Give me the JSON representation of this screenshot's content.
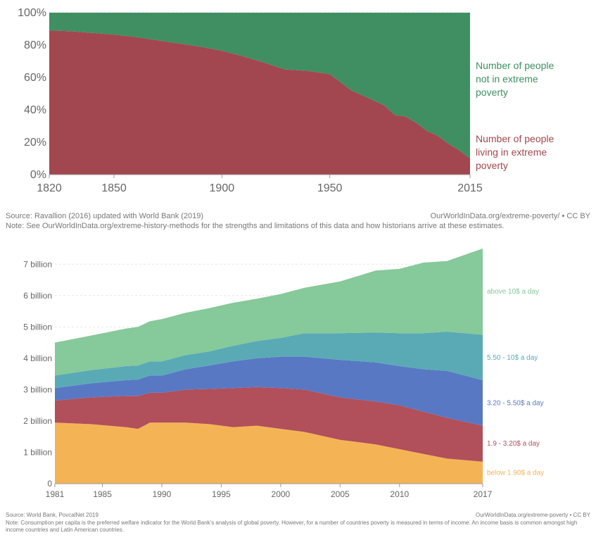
{
  "chart_data": [
    {
      "type": "area",
      "stacked": true,
      "normalized": true,
      "x": [
        1820,
        1830,
        1840,
        1850,
        1860,
        1870,
        1880,
        1890,
        1900,
        1910,
        1920,
        1929,
        1935,
        1940,
        1950,
        1955,
        1960,
        1965,
        1970,
        1975,
        1980,
        1981,
        1985,
        1990,
        1995,
        2000,
        2005,
        2010,
        2015
      ],
      "series": [
        {
          "name": "Number of people living in extreme poverty",
          "color": "#a2474f",
          "values": [
            89,
            88.5,
            87.5,
            86.5,
            85,
            83,
            81,
            79,
            76.5,
            73,
            69,
            65,
            64.5,
            64,
            62,
            57,
            52,
            49,
            46,
            43,
            37,
            36.5,
            36,
            32,
            27,
            24,
            19,
            15,
            10
          ]
        },
        {
          "name": "Number of people not in extreme poverty",
          "color": "#3f8f62",
          "values": [
            11,
            11.5,
            12.5,
            13.5,
            15,
            17,
            19,
            21,
            23.5,
            27,
            31,
            35,
            35.5,
            36,
            38,
            43,
            48,
            51,
            54,
            57,
            63,
            63.5,
            64,
            68,
            73,
            76,
            81,
            85,
            90
          ]
        }
      ],
      "xticks": [
        "1820",
        "1850",
        "1900",
        "1950",
        "2015"
      ],
      "yticks": [
        "0%",
        "20%",
        "40%",
        "60%",
        "80%",
        "100%"
      ],
      "ylim": [
        0,
        100
      ],
      "source": "Source: Ravallion (2016) updated with World Bank (2019)",
      "credit": "OurWorldInData.org/extreme-poverty/ • CC BY",
      "note": "Note: See OurWorldInData.org/extreme-history-methods for the strengths and limitations of this data and how historians arrive at these estimates."
    },
    {
      "type": "area",
      "stacked": true,
      "x": [
        1981,
        1984,
        1987,
        1988,
        1989,
        1990,
        1992,
        1994,
        1996,
        1998,
        2000,
        2002,
        2005,
        2008,
        2010,
        2012,
        2014,
        2017
      ],
      "series": [
        {
          "name": "below 1.90$ a day",
          "color": "#f4b455",
          "values": [
            1.95,
            1.9,
            1.8,
            1.75,
            1.95,
            1.95,
            1.95,
            1.9,
            1.8,
            1.85,
            1.75,
            1.65,
            1.4,
            1.25,
            1.1,
            0.95,
            0.8,
            0.7
          ]
        },
        {
          "name": "1.9 - 3.20$ a day",
          "color": "#b14f5a",
          "values": [
            0.7,
            0.85,
            1.0,
            1.05,
            0.95,
            0.95,
            1.05,
            1.12,
            1.25,
            1.23,
            1.3,
            1.35,
            1.35,
            1.37,
            1.4,
            1.35,
            1.3,
            1.15
          ]
        },
        {
          "name": "3.20 - 5.50$ a day",
          "color": "#5878c4",
          "values": [
            0.4,
            0.45,
            0.5,
            0.52,
            0.55,
            0.55,
            0.65,
            0.75,
            0.85,
            0.92,
            1.0,
            1.05,
            1.2,
            1.25,
            1.25,
            1.35,
            1.5,
            1.45
          ]
        },
        {
          "name": "5.50 - 10$ a day",
          "color": "#5aaab5",
          "values": [
            0.4,
            0.42,
            0.45,
            0.45,
            0.45,
            0.45,
            0.45,
            0.45,
            0.5,
            0.55,
            0.6,
            0.75,
            0.85,
            0.95,
            1.05,
            1.15,
            1.25,
            1.45
          ]
        },
        {
          "name": "above 10$ a day",
          "color": "#86c99a",
          "values": [
            1.05,
            1.1,
            1.2,
            1.23,
            1.28,
            1.35,
            1.35,
            1.38,
            1.37,
            1.35,
            1.4,
            1.45,
            1.65,
            1.98,
            2.05,
            2.25,
            2.25,
            2.75
          ]
        }
      ],
      "xticks": [
        "1981",
        "1985",
        "1990",
        "1995",
        "2000",
        "2005",
        "2010",
        "2017"
      ],
      "yticks": [
        "0",
        "1 billion",
        "2 billion",
        "3 billion",
        "4 billion",
        "5 billion",
        "6 billion",
        "7 billion"
      ],
      "ylim": [
        0,
        7.5
      ],
      "source": "Source: World Bank, PovcalNet 2019",
      "credit": "OurWorldInData.org/extreme-poverty • CC BY",
      "note": "Note: Consumption per capita is the preferred welfare indicator for the World Bank's analysis of global poverty. However, for a number of countries poverty is measured in terms of income. An income basis is common amongst high income countries and Latin American countries."
    }
  ],
  "labels1": [
    {
      "name": "label-not-in-poverty",
      "color": "#3f8f62",
      "lines": [
        "Number of people",
        "not in extreme",
        "poverty"
      ]
    },
    {
      "name": "label-in-poverty",
      "color": "#a2474f",
      "lines": [
        "Number of people",
        "living in extreme",
        "poverty"
      ]
    }
  ]
}
